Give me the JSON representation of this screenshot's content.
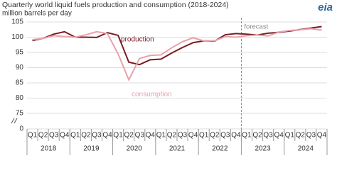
{
  "chart_data": {
    "type": "line",
    "title": "Quarterly world liquid fuels production and consumption (2018-2024)",
    "subtitle": "million barrels per day",
    "logo": "eia",
    "categories": [
      "Q1",
      "Q2",
      "Q3",
      "Q4",
      "Q1",
      "Q2",
      "Q3",
      "Q4",
      "Q1",
      "Q2",
      "Q3",
      "Q4",
      "Q1",
      "Q2",
      "Q3",
      "Q4",
      "Q1",
      "Q2",
      "Q3",
      "Q4",
      "Q1",
      "Q2",
      "Q3",
      "Q4",
      "Q1",
      "Q2",
      "Q3",
      "Q4"
    ],
    "years": [
      "2018",
      "2019",
      "2020",
      "2021",
      "2022",
      "2023",
      "2024"
    ],
    "series": [
      {
        "name": "production",
        "color": "#7b1a22",
        "values": [
          98.9,
          99.6,
          101.0,
          101.8,
          100.0,
          100.0,
          99.9,
          101.5,
          100.6,
          91.8,
          91.0,
          92.6,
          92.8,
          94.8,
          96.6,
          98.2,
          98.8,
          98.7,
          100.8,
          101.2,
          101.0,
          100.7,
          101.3,
          101.6,
          102.0,
          102.5,
          103.0,
          103.5
        ]
      },
      {
        "name": "consumption",
        "color": "#e8a1aa",
        "values": [
          99.2,
          99.6,
          100.5,
          100.2,
          100.0,
          100.8,
          101.8,
          101.2,
          94.5,
          86.0,
          93.0,
          94.0,
          94.2,
          96.5,
          98.5,
          99.8,
          98.8,
          98.8,
          100.2,
          100.0,
          100.5,
          100.7,
          100.4,
          101.7,
          102.2,
          102.4,
          102.8,
          102.3
        ]
      }
    ],
    "forecast": {
      "label": "forecast",
      "start": 20
    },
    "ylim": [
      0,
      105
    ],
    "axis_break": [
      0,
      75
    ],
    "yticks": [
      0,
      75,
      80,
      85,
      90,
      95,
      100,
      105
    ],
    "grid": true
  }
}
